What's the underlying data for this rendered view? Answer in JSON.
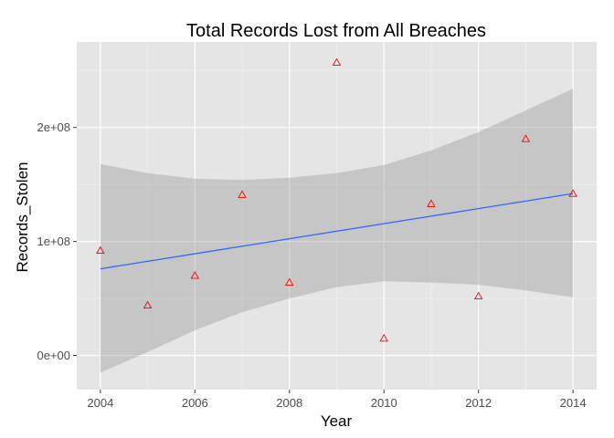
{
  "chart_data": {
    "type": "scatter",
    "title": "Total Records Lost from All Breaches",
    "xlabel": "Year",
    "ylabel": "Records_Stolen",
    "xlim": [
      2003.5,
      2014.5
    ],
    "ylim": [
      -30000000,
      275000000
    ],
    "x_ticks": [
      2004,
      2006,
      2008,
      2010,
      2012,
      2014
    ],
    "x_tick_labels": [
      "2004",
      "2006",
      "2008",
      "2010",
      "2012",
      "2014"
    ],
    "y_ticks": [
      0,
      100000000,
      200000000
    ],
    "y_tick_labels": [
      "0e+00",
      "1e+08",
      "2e+08"
    ],
    "grid": true,
    "panel_background": "#e5e5e5",
    "points": {
      "x": [
        2004,
        2005,
        2006,
        2007,
        2008,
        2009,
        2010,
        2011,
        2012,
        2013,
        2014
      ],
      "y": [
        92000000,
        44000000,
        70000000,
        141000000,
        64000000,
        257000000,
        15000000,
        133000000,
        52000000,
        190000000,
        142000000
      ],
      "marker": "triangle-open",
      "color": "#ff0000"
    },
    "trend": {
      "method": "linear",
      "x": [
        2004,
        2014
      ],
      "y": [
        76000000,
        142000000
      ],
      "color": "#3366ff"
    },
    "confidence_band": {
      "x": [
        2004,
        2005,
        2006,
        2007,
        2008,
        2009,
        2010,
        2011,
        2012,
        2013,
        2014
      ],
      "lower": [
        -15000000,
        3000000,
        22000000,
        38000000,
        50000000,
        60000000,
        65000000,
        64000000,
        62000000,
        57000000,
        51000000
      ],
      "upper": [
        168000000,
        160000000,
        155000000,
        154000000,
        156000000,
        160000000,
        167000000,
        180000000,
        196000000,
        215000000,
        234000000
      ],
      "color": "#999999",
      "opacity": 0.4
    }
  }
}
